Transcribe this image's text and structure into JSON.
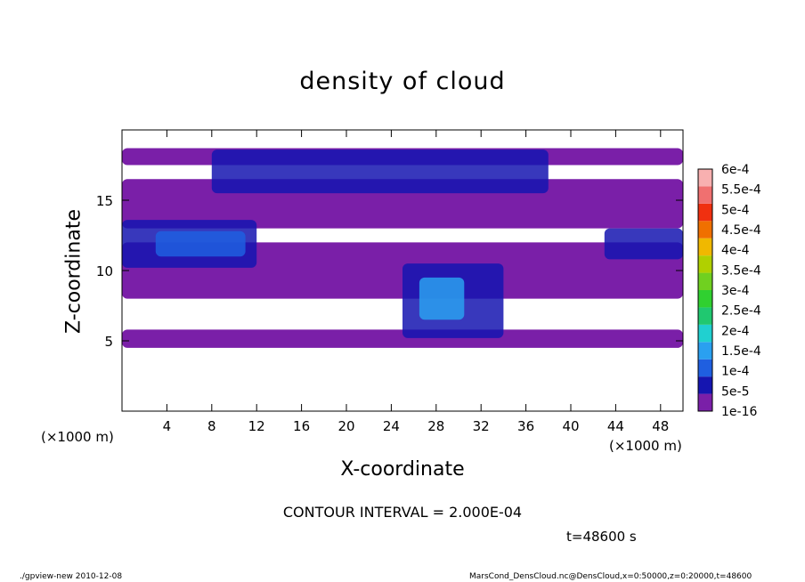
{
  "chart_data": {
    "type": "heatmap",
    "title": "density of cloud",
    "xlabel": "X-coordinate",
    "ylabel": "Z-coordinate",
    "x_unit_label": "(×1000 m)",
    "xlim": [
      0,
      50
    ],
    "ylim": [
      0,
      20
    ],
    "x_ticks": [
      4,
      8,
      12,
      16,
      20,
      24,
      28,
      32,
      36,
      40,
      44,
      48
    ],
    "y_ticks": [
      5,
      10,
      15
    ],
    "colorbar": {
      "levels": [
        "1e-16",
        "5e-5",
        "1e-4",
        "1.5e-4",
        "2e-4",
        "2.5e-4",
        "3e-4",
        "3.5e-4",
        "4e-4",
        "4.5e-4",
        "5e-4",
        "5.5e-4",
        "6e-4"
      ],
      "colors": [
        "#7a1fa8",
        "#1515b0",
        "#1f5fe0",
        "#2aa0f0",
        "#20d0d0",
        "#20c870",
        "#30d030",
        "#70d020",
        "#b0d000",
        "#f0b800",
        "#f07000",
        "#f03010",
        "#f07070",
        "#f8b0b0"
      ]
    },
    "regions": [
      {
        "level": 0,
        "x": [
          0,
          50
        ],
        "z": [
          17.5,
          18.7
        ]
      },
      {
        "level": 0,
        "x": [
          0,
          50
        ],
        "z": [
          13.0,
          16.5
        ]
      },
      {
        "level": 0,
        "x": [
          0,
          50
        ],
        "z": [
          8.0,
          12.0
        ]
      },
      {
        "level": 0,
        "x": [
          0,
          50
        ],
        "z": [
          4.5,
          5.8
        ]
      },
      {
        "level": 1,
        "x": [
          8,
          38
        ],
        "z": [
          15.5,
          18.6
        ]
      },
      {
        "level": 1,
        "x": [
          0,
          12
        ],
        "z": [
          10.2,
          13.6
        ]
      },
      {
        "level": 1,
        "x": [
          25,
          34
        ],
        "z": [
          5.2,
          10.5
        ]
      },
      {
        "level": 1,
        "x": [
          43,
          50
        ],
        "z": [
          10.8,
          13.0
        ]
      },
      {
        "level": 2,
        "x": [
          3,
          11
        ],
        "z": [
          11.0,
          12.8
        ]
      },
      {
        "level": 3,
        "x": [
          26.5,
          30.5
        ],
        "z": [
          6.5,
          9.5
        ]
      }
    ],
    "grid": false,
    "legend": "right"
  },
  "annotations": {
    "contour_interval": "CONTOUR INTERVAL = 2.000E-04",
    "time": "t=48600 s"
  },
  "footer": {
    "left": "./gpview-new  2010-12-08",
    "right": "MarsCond_DensCloud.nc@DensCloud,x=0:50000,z=0:20000,t=48600"
  }
}
